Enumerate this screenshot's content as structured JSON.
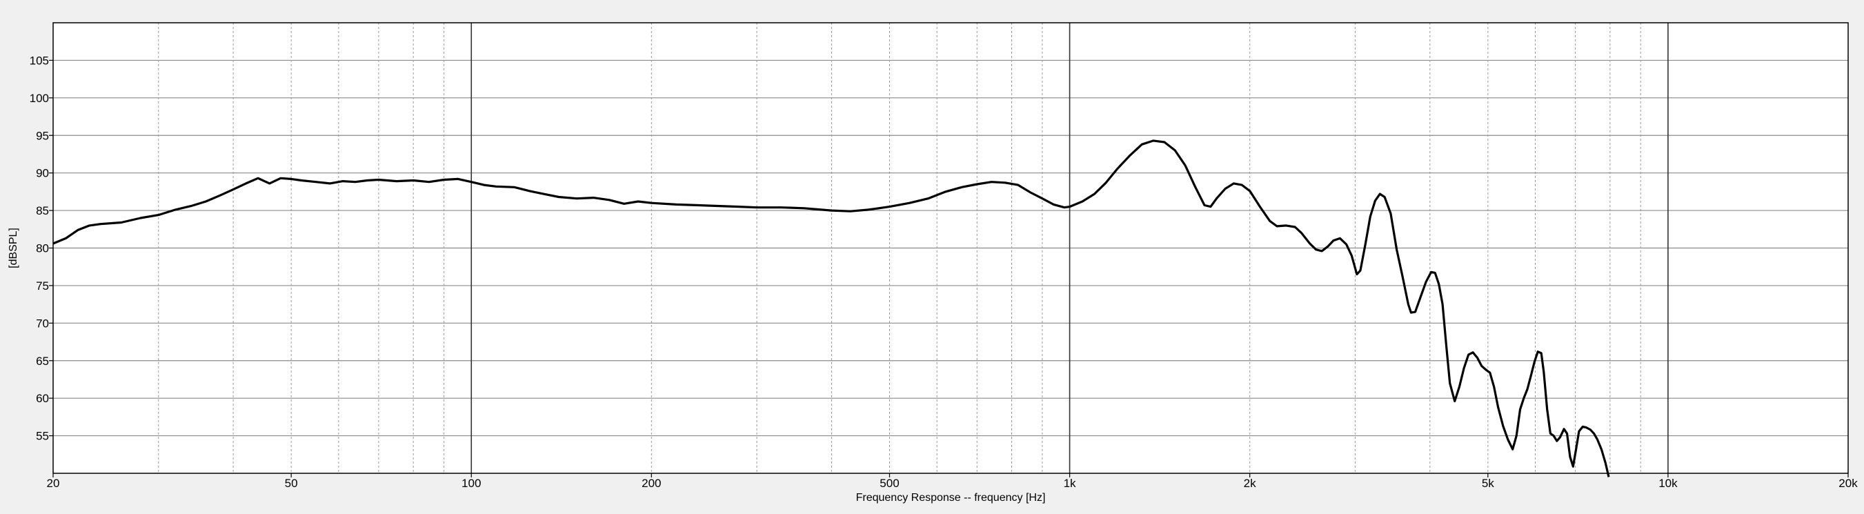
{
  "chart_data": {
    "type": "line",
    "title": "",
    "xlabel": "Frequency Response -- frequency [Hz]",
    "ylabel": "[dBSPL]",
    "x_scale": "log",
    "xlim": [
      20,
      20000
    ],
    "ylim": [
      50,
      110
    ],
    "grid": true,
    "x_ticks": [
      {
        "value": 20,
        "label": "20"
      },
      {
        "value": 50,
        "label": "50"
      },
      {
        "value": 100,
        "label": "100"
      },
      {
        "value": 200,
        "label": "200"
      },
      {
        "value": 500,
        "label": "500"
      },
      {
        "value": 1000,
        "label": "1k"
      },
      {
        "value": 2000,
        "label": "2k"
      },
      {
        "value": 5000,
        "label": "5k"
      },
      {
        "value": 10000,
        "label": "10k"
      },
      {
        "value": 20000,
        "label": "20k"
      }
    ],
    "y_ticks": [
      {
        "value": 55,
        "label": "55"
      },
      {
        "value": 60,
        "label": "60"
      },
      {
        "value": 65,
        "label": "65"
      },
      {
        "value": 70,
        "label": "70"
      },
      {
        "value": 75,
        "label": "75"
      },
      {
        "value": 80,
        "label": "80"
      },
      {
        "value": 85,
        "label": "85"
      },
      {
        "value": 90,
        "label": "90"
      },
      {
        "value": 95,
        "label": "95"
      },
      {
        "value": 100,
        "label": "100"
      },
      {
        "value": 105,
        "label": "105"
      }
    ],
    "series": [
      {
        "line_color": "#000000",
        "points": [
          [
            20,
            80.6
          ],
          [
            21,
            81.3
          ],
          [
            22,
            82.4
          ],
          [
            23,
            83.0
          ],
          [
            24,
            83.2
          ],
          [
            26,
            83.4
          ],
          [
            28,
            84.0
          ],
          [
            30,
            84.4
          ],
          [
            32,
            85.1
          ],
          [
            34,
            85.6
          ],
          [
            36,
            86.2
          ],
          [
            38,
            87.0
          ],
          [
            40,
            87.8
          ],
          [
            42,
            88.6
          ],
          [
            44,
            89.3
          ],
          [
            46,
            88.6
          ],
          [
            48,
            89.3
          ],
          [
            50,
            89.2
          ],
          [
            52,
            89.0
          ],
          [
            55,
            88.8
          ],
          [
            58,
            88.6
          ],
          [
            61,
            88.9
          ],
          [
            64,
            88.8
          ],
          [
            67,
            89.0
          ],
          [
            70,
            89.1
          ],
          [
            75,
            88.9
          ],
          [
            80,
            89.0
          ],
          [
            85,
            88.8
          ],
          [
            90,
            89.1
          ],
          [
            95,
            89.2
          ],
          [
            100,
            88.8
          ],
          [
            105,
            88.4
          ],
          [
            110,
            88.2
          ],
          [
            118,
            88.1
          ],
          [
            125,
            87.6
          ],
          [
            132,
            87.2
          ],
          [
            140,
            86.8
          ],
          [
            150,
            86.6
          ],
          [
            160,
            86.7
          ],
          [
            170,
            86.4
          ],
          [
            180,
            85.9
          ],
          [
            190,
            86.2
          ],
          [
            200,
            86.0
          ],
          [
            220,
            85.8
          ],
          [
            240,
            85.7
          ],
          [
            260,
            85.6
          ],
          [
            280,
            85.5
          ],
          [
            300,
            85.4
          ],
          [
            330,
            85.4
          ],
          [
            360,
            85.3
          ],
          [
            400,
            85.0
          ],
          [
            430,
            84.9
          ],
          [
            460,
            85.1
          ],
          [
            500,
            85.5
          ],
          [
            540,
            86.0
          ],
          [
            580,
            86.6
          ],
          [
            620,
            87.5
          ],
          [
            660,
            88.1
          ],
          [
            700,
            88.5
          ],
          [
            740,
            88.8
          ],
          [
            780,
            88.7
          ],
          [
            820,
            88.4
          ],
          [
            860,
            87.4
          ],
          [
            900,
            86.6
          ],
          [
            940,
            85.8
          ],
          [
            980,
            85.4
          ],
          [
            1000,
            85.5
          ],
          [
            1050,
            86.2
          ],
          [
            1100,
            87.2
          ],
          [
            1150,
            88.7
          ],
          [
            1200,
            90.5
          ],
          [
            1260,
            92.3
          ],
          [
            1320,
            93.8
          ],
          [
            1380,
            94.3
          ],
          [
            1440,
            94.1
          ],
          [
            1500,
            93.0
          ],
          [
            1560,
            91.0
          ],
          [
            1620,
            88.2
          ],
          [
            1680,
            85.7
          ],
          [
            1720,
            85.5
          ],
          [
            1760,
            86.6
          ],
          [
            1820,
            87.9
          ],
          [
            1880,
            88.6
          ],
          [
            1940,
            88.4
          ],
          [
            2000,
            87.6
          ],
          [
            2080,
            85.5
          ],
          [
            2160,
            83.6
          ],
          [
            2220,
            82.9
          ],
          [
            2300,
            83.0
          ],
          [
            2380,
            82.8
          ],
          [
            2440,
            82.0
          ],
          [
            2520,
            80.6
          ],
          [
            2580,
            79.8
          ],
          [
            2640,
            79.6
          ],
          [
            2700,
            80.2
          ],
          [
            2760,
            81.0
          ],
          [
            2830,
            81.3
          ],
          [
            2900,
            80.5
          ],
          [
            2960,
            79.0
          ],
          [
            3020,
            76.5
          ],
          [
            3060,
            77.0
          ],
          [
            3120,
            80.5
          ],
          [
            3180,
            84.2
          ],
          [
            3240,
            86.3
          ],
          [
            3300,
            87.2
          ],
          [
            3360,
            86.8
          ],
          [
            3440,
            84.6
          ],
          [
            3520,
            79.8
          ],
          [
            3600,
            76.2
          ],
          [
            3680,
            72.5
          ],
          [
            3720,
            71.4
          ],
          [
            3780,
            71.5
          ],
          [
            3860,
            73.5
          ],
          [
            3940,
            75.5
          ],
          [
            4020,
            76.8
          ],
          [
            4080,
            76.7
          ],
          [
            4140,
            75.2
          ],
          [
            4200,
            72.5
          ],
          [
            4260,
            67.0
          ],
          [
            4320,
            62.0
          ],
          [
            4400,
            59.6
          ],
          [
            4480,
            61.5
          ],
          [
            4560,
            64.0
          ],
          [
            4640,
            65.8
          ],
          [
            4720,
            66.1
          ],
          [
            4800,
            65.4
          ],
          [
            4880,
            64.3
          ],
          [
            4960,
            63.8
          ],
          [
            5040,
            63.4
          ],
          [
            5120,
            61.5
          ],
          [
            5200,
            58.8
          ],
          [
            5300,
            56.3
          ],
          [
            5400,
            54.5
          ],
          [
            5500,
            53.2
          ],
          [
            5580,
            55.0
          ],
          [
            5660,
            58.5
          ],
          [
            5740,
            60.0
          ],
          [
            5820,
            61.2
          ],
          [
            5900,
            63.0
          ],
          [
            5980,
            64.8
          ],
          [
            6060,
            66.2
          ],
          [
            6140,
            66.0
          ],
          [
            6200,
            63.5
          ],
          [
            6280,
            58.5
          ],
          [
            6360,
            55.3
          ],
          [
            6440,
            55.0
          ],
          [
            6520,
            54.3
          ],
          [
            6600,
            54.8
          ],
          [
            6700,
            55.9
          ],
          [
            6780,
            55.3
          ],
          [
            6860,
            52.2
          ],
          [
            6940,
            50.9
          ],
          [
            7020,
            53.2
          ],
          [
            7100,
            55.6
          ],
          [
            7200,
            56.2
          ],
          [
            7300,
            56.1
          ],
          [
            7420,
            55.8
          ],
          [
            7520,
            55.3
          ],
          [
            7620,
            54.5
          ],
          [
            7740,
            53.2
          ],
          [
            7860,
            51.4
          ],
          [
            7960,
            49.5
          ]
        ]
      }
    ]
  }
}
